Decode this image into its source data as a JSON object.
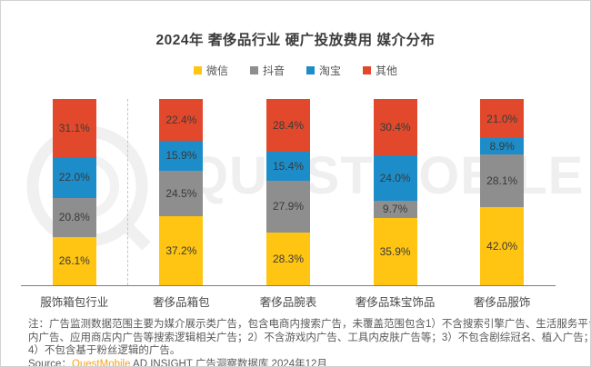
{
  "chart_data": {
    "type": "bar",
    "subtype": "stacked-percent",
    "title": "2024年 奢侈品行业 硬广投放费用 媒介分布",
    "categories": [
      "服饰箱包行业",
      "奢侈品箱包",
      "奢侈品腕表",
      "奢侈品珠宝饰品",
      "奢侈品服饰"
    ],
    "series": [
      {
        "name": "微信",
        "color": "#FFC512",
        "values": [
          26.1,
          37.2,
          28.3,
          35.9,
          42.0
        ]
      },
      {
        "name": "抖音",
        "color": "#8E8E8E",
        "values": [
          20.8,
          24.5,
          27.9,
          9.7,
          28.1
        ]
      },
      {
        "name": "淘宝",
        "color": "#1C8DC9",
        "values": [
          22.0,
          15.9,
          15.4,
          24.0,
          8.9
        ]
      },
      {
        "name": "其他",
        "color": "#E2492C",
        "values": [
          31.1,
          22.4,
          28.4,
          30.4,
          21.0
        ]
      }
    ],
    "value_suffix": "%",
    "ylim": [
      0,
      100
    ],
    "legend_position": "top",
    "grid": false,
    "separator_after_category": "服饰箱包行业"
  },
  "watermark": {
    "text": "QUESTMOBILE"
  },
  "footer": {
    "note_lines": [
      "注：广告监测数据范围主要为媒介展示类广告，包含电商内搜索广告，未覆盖范围包含1）不含搜索引擎广告、生活服务平台",
      "内广告、应用商店内广告等搜索逻辑相关广告；2）不含游戏内广告、工具内皮肤广告等；3）不包含剧综冠名、植入广告；",
      "4）不包含基于粉丝逻辑的广告。"
    ],
    "source_prefix": "Source：",
    "source_brand": "QuestMobile",
    "source_rest": " AD INSIGHT 广告洞察数据库 2024年12月"
  }
}
